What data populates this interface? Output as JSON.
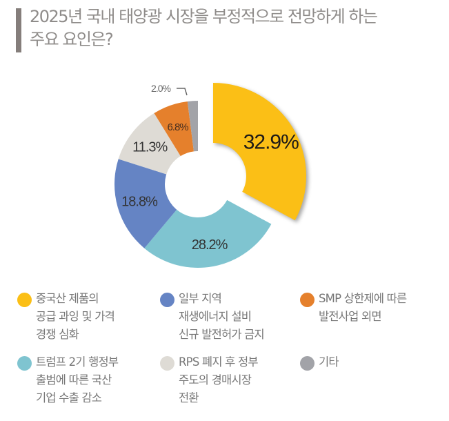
{
  "title": "2025년 국내 태양광 시장을 부정적으로 전망하게 하는\n주요 요인은?",
  "chart_data": {
    "type": "pie",
    "variant": "donut",
    "title": "2025년 국내 태양광 시장을 부정적으로 전망하게 하는 주요 요인은?",
    "exploded_slice": "중국산 제품의 공급 과잉 및 가격 경쟁 심화",
    "legend_position": "bottom",
    "slices": [
      {
        "label": "중국산 제품의\n공급 과잉 및 가격\n경쟁 심화",
        "value": 32.9,
        "display": "32.9%",
        "color": "#fbbf16"
      },
      {
        "label": "트럼프 2기 행정부\n출범에 따른 국산\n기업 수출 감소",
        "value": 28.2,
        "display": "28.2%",
        "color": "#7fc4d0"
      },
      {
        "label": "일부 지역\n재생에너지 설비\n신규 발전허가 금지",
        "value": 18.8,
        "display": "18.8%",
        "color": "#6584c4"
      },
      {
        "label": "RPS 폐지 후 정부\n주도의 경매시장\n전환",
        "value": 11.3,
        "display": "11.3%",
        "color": "#dedbd5"
      },
      {
        "label": "SMP 상한제에 따른\n발전사업 외면",
        "value": 6.8,
        "display": "6.8%",
        "color": "#e5802c"
      },
      {
        "label": "기타",
        "value": 2.0,
        "display": "2.0%",
        "color": "#a2a3a8"
      }
    ]
  }
}
